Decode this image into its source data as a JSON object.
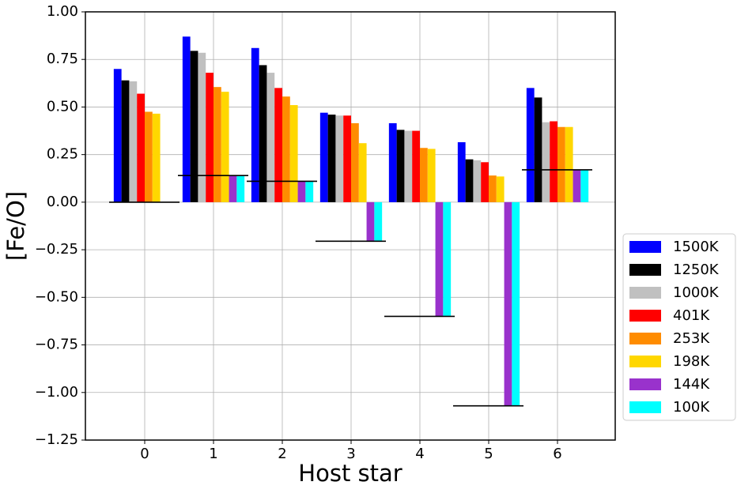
{
  "chart_data": {
    "type": "bar",
    "x_label": "Host star",
    "y_label": "[Fe/O]",
    "categories": [
      "0",
      "1",
      "2",
      "3",
      "4",
      "5",
      "6"
    ],
    "series": [
      {
        "name": "1500K",
        "color": "#0000ff",
        "values": [
          0.7,
          0.87,
          0.81,
          0.47,
          0.415,
          0.315,
          0.6
        ]
      },
      {
        "name": "1250K",
        "color": "#000000",
        "values": [
          0.64,
          0.795,
          0.72,
          0.46,
          0.38,
          0.225,
          0.55
        ]
      },
      {
        "name": "1000K",
        "color": "#c0c0c0",
        "values": [
          0.635,
          0.785,
          0.68,
          0.455,
          0.375,
          0.22,
          0.42
        ]
      },
      {
        "name": "401K",
        "color": "#ff0000",
        "values": [
          0.57,
          0.68,
          0.6,
          0.455,
          0.375,
          0.21,
          0.425
        ]
      },
      {
        "name": "253K",
        "color": "#ff8c00",
        "values": [
          0.475,
          0.605,
          0.555,
          0.415,
          0.285,
          0.14,
          0.395
        ]
      },
      {
        "name": "198K",
        "color": "#ffd700",
        "values": [
          0.465,
          0.58,
          0.51,
          0.31,
          0.28,
          0.135,
          0.395
        ]
      },
      {
        "name": "144K",
        "color": "#9932cc",
        "values": [
          0,
          0.14,
          0.11,
          -0.205,
          -0.6,
          -1.07,
          0.17
        ]
      },
      {
        "name": "100K",
        "color": "#00ffff",
        "values": [
          0,
          0.14,
          0.11,
          -0.205,
          -0.6,
          -1.07,
          0.17
        ]
      }
    ],
    "reference_values": [
      0,
      0.14,
      0.11,
      -0.205,
      -0.6,
      -1.07,
      0.17
    ],
    "reference_color": "#000000",
    "ylim": [
      -1.25,
      1.0
    ],
    "yticks": [
      {
        "value": -1.25,
        "label": "−1.25"
      },
      {
        "value": -1.0,
        "label": "−1.00"
      },
      {
        "value": -0.75,
        "label": "−0.75"
      },
      {
        "value": -0.5,
        "label": "−0.50"
      },
      {
        "value": -0.25,
        "label": "−0.25"
      },
      {
        "value": 0,
        "label": "0.00"
      },
      {
        "value": 0.25,
        "label": "0.25"
      },
      {
        "value": 0.5,
        "label": "0.50"
      },
      {
        "value": 0.75,
        "label": "0.75"
      },
      {
        "value": 1.0,
        "label": "1.00"
      }
    ],
    "grid": true,
    "legend": "lower right"
  }
}
